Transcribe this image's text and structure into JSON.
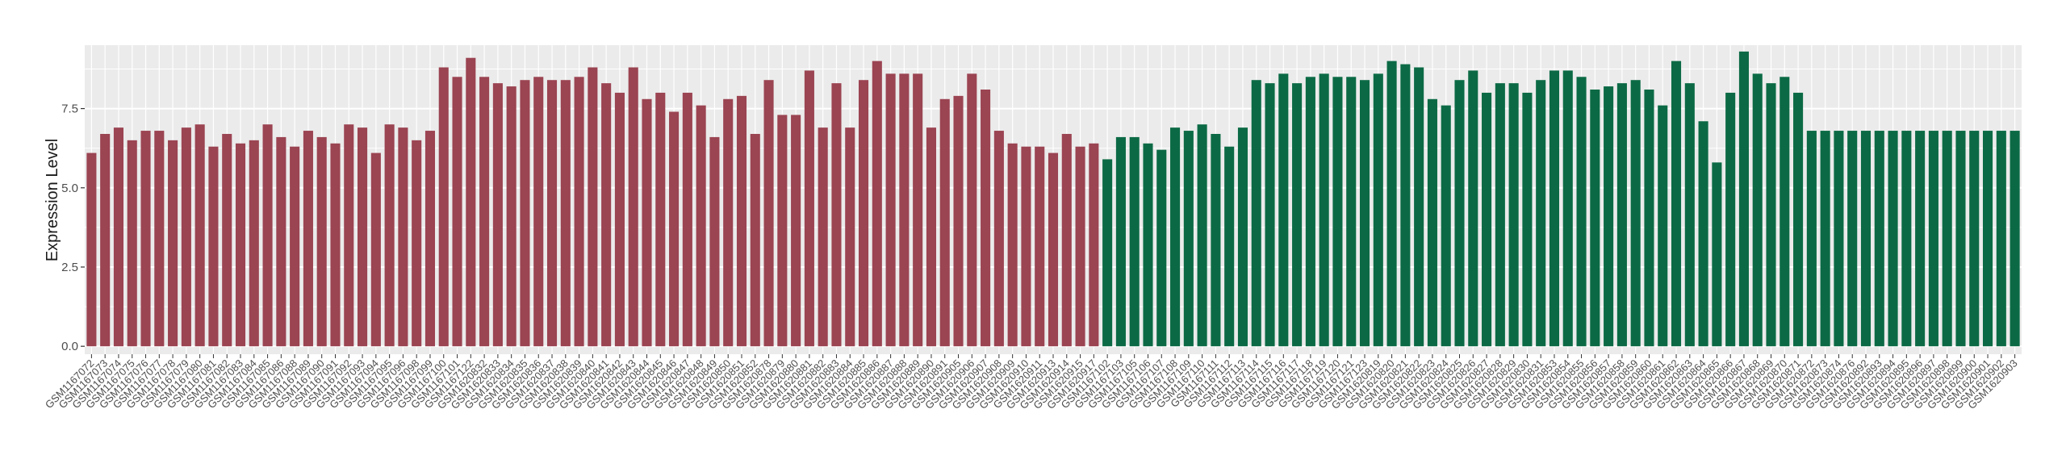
{
  "chart_data": {
    "type": "bar",
    "title": "",
    "xlabel": "",
    "ylabel": "Expression Level",
    "ylim": [
      -0.25,
      9.5
    ],
    "yticks": [
      0.0,
      2.5,
      5.0,
      7.5
    ],
    "ytick_labels": [
      "0.0",
      "2.5",
      "5.0",
      "7.5"
    ],
    "grid": true,
    "legend": "none",
    "colors": {
      "group1": "#9b4452",
      "group2": "#0b6a45",
      "panel": "#ebebeb",
      "grid": "#ffffff"
    },
    "categories": [
      "GSM1167072",
      "GSM1167073",
      "GSM1167074",
      "GSM1167075",
      "GSM1167076",
      "GSM1167077",
      "GSM1167078",
      "GSM1167079",
      "GSM1167080",
      "GSM1167081",
      "GSM1167082",
      "GSM1167083",
      "GSM1167084",
      "GSM1167085",
      "GSM1167086",
      "GSM1167088",
      "GSM1167089",
      "GSM1167090",
      "GSM1167091",
      "GSM1167092",
      "GSM1167093",
      "GSM1167094",
      "GSM1167095",
      "GSM1167096",
      "GSM1167098",
      "GSM1167099",
      "GSM1167100",
      "GSM1167101",
      "GSM1167122",
      "GSM1620832",
      "GSM1620833",
      "GSM1620834",
      "GSM1620835",
      "GSM1620836",
      "GSM1620837",
      "GSM1620838",
      "GSM1620839",
      "GSM1620840",
      "GSM1620841",
      "GSM1620842",
      "GSM1620843",
      "GSM1620844",
      "GSM1620845",
      "GSM1620846",
      "GSM1620847",
      "GSM1620848",
      "GSM1620849",
      "GSM1620850",
      "GSM1620851",
      "GSM1620852",
      "GSM1620878",
      "GSM1620879",
      "GSM1620880",
      "GSM1620881",
      "GSM1620882",
      "GSM1620883",
      "GSM1620884",
      "GSM1620885",
      "GSM1620886",
      "GSM1620887",
      "GSM1620888",
      "GSM1620889",
      "GSM1620890",
      "GSM1620891",
      "GSM1620905",
      "GSM1620906",
      "GSM1620907",
      "GSM1620908",
      "GSM1620909",
      "GSM1620910",
      "GSM1620911",
      "GSM1620913",
      "GSM1620914",
      "GSM1620915",
      "GSM1620917",
      "GSM1167102",
      "GSM1167103",
      "GSM1167105",
      "GSM1167106",
      "GSM1167107",
      "GSM1167108",
      "GSM1167109",
      "GSM1167110",
      "GSM1167111",
      "GSM1167112",
      "GSM1167113",
      "GSM1167114",
      "GSM1167115",
      "GSM1167116",
      "GSM1167117",
      "GSM1167118",
      "GSM1167119",
      "GSM1167120",
      "GSM1167121",
      "GSM1167123",
      "GSM1620819",
      "GSM1620820",
      "GSM1620821",
      "GSM1620822",
      "GSM1620823",
      "GSM1620824",
      "GSM1620825",
      "GSM1620826",
      "GSM1620827",
      "GSM1620828",
      "GSM1620829",
      "GSM1620830",
      "GSM1620831",
      "GSM1620853",
      "GSM1620854",
      "GSM1620855",
      "GSM1620856",
      "GSM1620857",
      "GSM1620858",
      "GSM1620859",
      "GSM1620860",
      "GSM1620861",
      "GSM1620862",
      "GSM1620863",
      "GSM1620864",
      "GSM1620865",
      "GSM1620866",
      "GSM1620867",
      "GSM1620868",
      "GSM1620869",
      "GSM1620870",
      "GSM1620871",
      "GSM1620872",
      "GSM1620873",
      "GSM1620874",
      "GSM1620876",
      "GSM1620892",
      "GSM1620893",
      "GSM1620894",
      "GSM1620895",
      "GSM1620896",
      "GSM1620897",
      "GSM1620898",
      "GSM1620899",
      "GSM1620900",
      "GSM1620901",
      "GSM1620902",
      "GSM1620903"
    ],
    "values": [
      6.1,
      6.7,
      6.9,
      6.5,
      6.8,
      6.8,
      6.5,
      6.9,
      7.0,
      6.3,
      6.7,
      6.4,
      6.5,
      7.0,
      6.6,
      6.3,
      6.8,
      6.6,
      6.4,
      7.0,
      6.9,
      6.1,
      7.0,
      6.9,
      6.5,
      6.8,
      8.8,
      8.5,
      9.1,
      8.5,
      8.3,
      8.2,
      8.4,
      8.5,
      8.4,
      8.4,
      8.5,
      8.8,
      8.3,
      8.0,
      8.8,
      7.8,
      8.0,
      7.4,
      8.0,
      7.6,
      6.6,
      7.8,
      7.9,
      6.7,
      8.4,
      7.3,
      7.3,
      8.7,
      6.9,
      8.3,
      6.9,
      8.4,
      9.0,
      8.6,
      8.6,
      8.6,
      6.9,
      7.8,
      7.9,
      8.6,
      8.1,
      6.8,
      6.4,
      6.3,
      6.3,
      6.1,
      6.7,
      6.3,
      6.4,
      5.9,
      6.6,
      6.6,
      6.4,
      6.2,
      6.9,
      6.8,
      7.0,
      6.7,
      6.3,
      6.9,
      8.4,
      8.3,
      8.6,
      8.3,
      8.5,
      8.6,
      8.5,
      8.5,
      8.4,
      8.6,
      9.0,
      8.9,
      8.8,
      7.8,
      7.6,
      8.4,
      8.7,
      8.0,
      8.3,
      8.3,
      8.0,
      8.4,
      8.7,
      8.7,
      8.5,
      8.1,
      8.2,
      8.3,
      8.4,
      8.1,
      7.6,
      9.0,
      8.3,
      7.1,
      5.8,
      8.0,
      9.3,
      8.6,
      8.3,
      8.5,
      8.0,
      6.8,
      6.8,
      6.8,
      6.8,
      6.8,
      6.8,
      6.8,
      6.8,
      6.8,
      6.8,
      6.8,
      6.8,
      6.8,
      6.8,
      6.8,
      6.8
    ],
    "group_split_index": 75
  }
}
